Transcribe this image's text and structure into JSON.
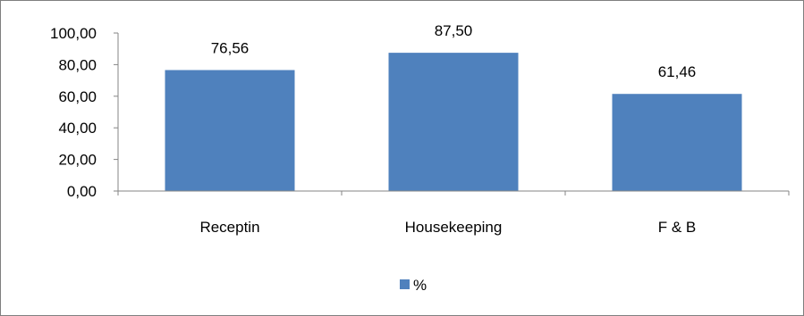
{
  "chart_data": {
    "type": "bar",
    "categories": [
      "Receptin",
      "Housekeeping",
      "F & B"
    ],
    "series": [
      {
        "name": "%",
        "values": [
          76.56,
          87.5,
          61.46
        ],
        "data_labels": [
          "76,56",
          "87,50",
          "61,46"
        ]
      }
    ],
    "y_ticks": [
      "0,00",
      "20,00",
      "40,00",
      "60,00",
      "80,00",
      "100,00"
    ],
    "ylim": [
      0,
      100
    ],
    "y_step": 20,
    "grid": false,
    "legend_position": "bottom",
    "bar_color": "#4f81bd",
    "axis_color": "#868686"
  }
}
